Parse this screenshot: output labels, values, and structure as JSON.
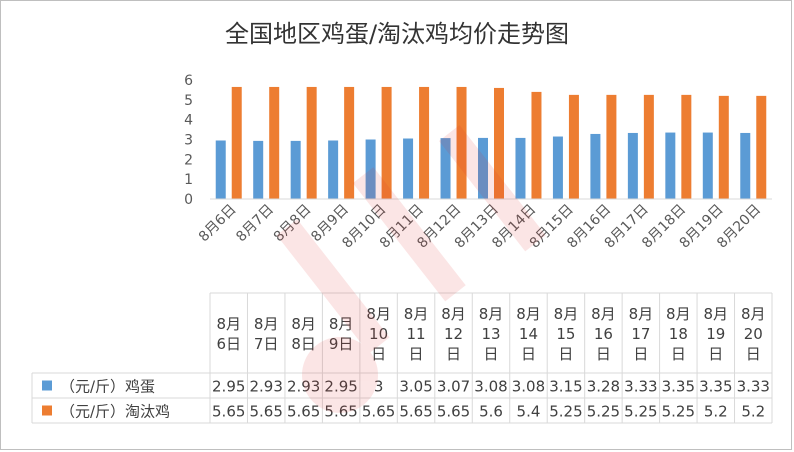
{
  "chart_data": {
    "type": "bar",
    "title": "全国地区鸡蛋/淘汰鸡均价走势图",
    "categories": [
      "8月6日",
      "8月7日",
      "8月8日",
      "8月9日",
      "8月10日",
      "8月11日",
      "8月12日",
      "8月13日",
      "8月14日",
      "8月15日",
      "8月16日",
      "8月17日",
      "8月18日",
      "8月19日",
      "8月20日"
    ],
    "series": [
      {
        "name": "（元/斤）鸡蛋",
        "color": "#5b9bd5",
        "values": [
          2.95,
          2.93,
          2.93,
          2.95,
          3,
          3.05,
          3.07,
          3.08,
          3.08,
          3.15,
          3.28,
          3.33,
          3.35,
          3.35,
          3.33
        ]
      },
      {
        "name": "（元/斤）淘汰鸡",
        "color": "#ed7d31",
        "values": [
          5.65,
          5.65,
          5.65,
          5.65,
          5.65,
          5.65,
          5.65,
          5.6,
          5.4,
          5.25,
          5.25,
          5.25,
          5.25,
          5.2,
          5.2
        ]
      }
    ],
    "table_labels": {
      "egg": [
        "2.95",
        "2.93",
        "2.93",
        "2.95",
        "3",
        "3.05",
        "3.07",
        "3.08",
        "3.08",
        "3.15",
        "3.28",
        "3.33",
        "3.35",
        "3.35",
        "3.33"
      ],
      "hen": [
        "5.65",
        "5.65",
        "5.65",
        "5.65",
        "5.65",
        "5.65",
        "5.65",
        "5.6",
        "5.4",
        "5.25",
        "5.25",
        "5.25",
        "5.25",
        "5.2",
        "5.2"
      ]
    },
    "ylim": [
      0,
      6
    ],
    "yticks": [
      "0",
      "1",
      "2",
      "3",
      "4",
      "5",
      "6"
    ],
    "grid": false,
    "legend": "data-table"
  }
}
